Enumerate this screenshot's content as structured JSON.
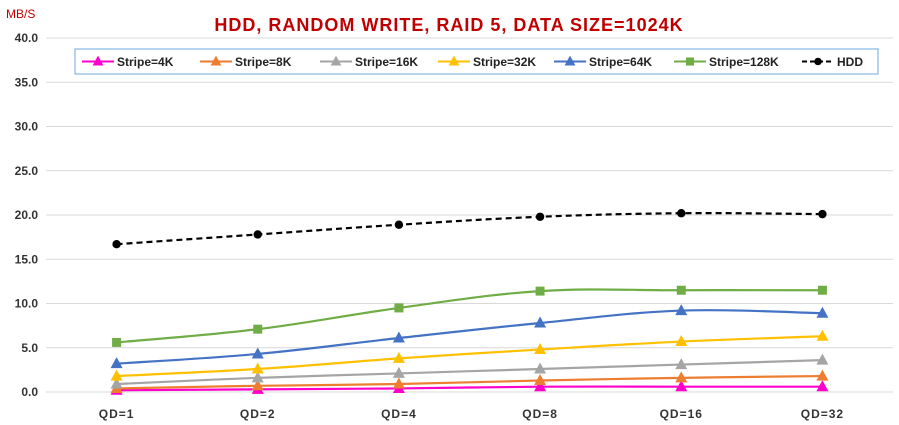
{
  "chart_data": {
    "type": "line",
    "title": "HDD, RANDOM WRITE, RAID 5, DATA SIZE=1024K",
    "xlabel": "",
    "ylabel": "MB/S",
    "categories": [
      "QD=1",
      "QD=2",
      "QD=4",
      "QD=8",
      "QD=16",
      "QD=32"
    ],
    "ylim": [
      0,
      40
    ],
    "yticks": [
      "0.0",
      "5.0",
      "10.0",
      "15.0",
      "20.0",
      "25.0",
      "30.0",
      "35.0",
      "40.0"
    ],
    "grid": true,
    "legend_position": "top",
    "series": [
      {
        "name": "Stripe=4K",
        "color": "#ff00cc",
        "marker": "triangle",
        "dashed": false,
        "values": [
          0.2,
          0.3,
          0.4,
          0.6,
          0.6,
          0.6
        ]
      },
      {
        "name": "Stripe=8K",
        "color": "#ed7d31",
        "marker": "triangle",
        "dashed": false,
        "values": [
          0.4,
          0.7,
          0.9,
          1.3,
          1.6,
          1.8
        ]
      },
      {
        "name": "Stripe=16K",
        "color": "#a5a5a5",
        "marker": "triangle",
        "dashed": false,
        "values": [
          0.9,
          1.6,
          2.1,
          2.6,
          3.1,
          3.6
        ]
      },
      {
        "name": "Stripe=32K",
        "color": "#ffc000",
        "marker": "triangle",
        "dashed": false,
        "values": [
          1.8,
          2.6,
          3.8,
          4.8,
          5.7,
          6.3
        ]
      },
      {
        "name": "Stripe=64K",
        "color": "#4472c4",
        "marker": "triangle",
        "dashed": false,
        "values": [
          3.2,
          4.3,
          6.1,
          7.8,
          9.2,
          8.9
        ]
      },
      {
        "name": "Stripe=128K",
        "color": "#70ad47",
        "marker": "square",
        "dashed": false,
        "values": [
          5.6,
          7.1,
          9.5,
          11.4,
          11.5,
          11.5
        ]
      },
      {
        "name": "HDD",
        "color": "#000000",
        "marker": "circle",
        "dashed": true,
        "values": [
          16.7,
          17.8,
          18.9,
          19.8,
          20.2,
          20.1
        ]
      }
    ]
  }
}
